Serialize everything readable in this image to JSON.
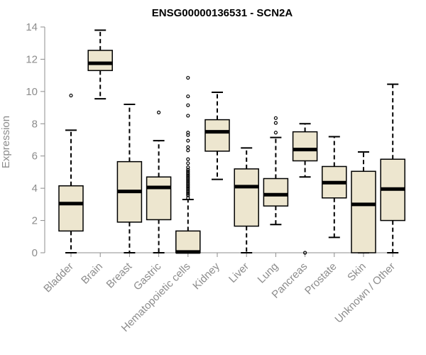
{
  "chart_data": {
    "type": "boxplot",
    "title": "ENSG00000136531 - SCN2A",
    "xlabel": "",
    "ylabel": "Expression",
    "ylim": [
      0,
      14
    ],
    "yticks": [
      0,
      2,
      4,
      6,
      8,
      10,
      12,
      14
    ],
    "grid": false,
    "box_fill": "#ede6cf",
    "box_stroke": "#000000",
    "axis_color": "#8c8c8c",
    "categories": [
      "Bladder",
      "Brain",
      "Breast",
      "Gastric",
      "Hematopoietic cells",
      "Kidney",
      "Liver",
      "Lung",
      "Pancreas",
      "Prostate",
      "Skin",
      "Unknown / Other"
    ],
    "boxes": [
      {
        "min": 0.0,
        "q1": 1.35,
        "median": 3.05,
        "q3": 4.15,
        "max": 7.6,
        "outliers": [
          9.75
        ]
      },
      {
        "min": 9.55,
        "q1": 11.3,
        "median": 11.75,
        "q3": 12.55,
        "max": 13.8,
        "outliers": []
      },
      {
        "min": 0.0,
        "q1": 1.9,
        "median": 3.8,
        "q3": 5.65,
        "max": 9.2,
        "outliers": []
      },
      {
        "min": 0.0,
        "q1": 2.05,
        "median": 4.05,
        "q3": 4.7,
        "max": 6.95,
        "outliers": [
          8.7
        ]
      },
      {
        "min": 0.0,
        "q1": 0.0,
        "median": 0.05,
        "q3": 1.35,
        "max": 3.3,
        "outliers": [
          3.4,
          3.55,
          3.65,
          3.75,
          3.85,
          3.95,
          4.05,
          4.15,
          4.25,
          4.35,
          4.45,
          4.55,
          4.65,
          4.75,
          4.85,
          4.95,
          5.05,
          5.15,
          5.3,
          5.55,
          5.8,
          6.35,
          6.55,
          6.95,
          7.3,
          7.45,
          8.5,
          9.15,
          9.7,
          10.85
        ]
      },
      {
        "min": 4.55,
        "q1": 6.3,
        "median": 7.5,
        "q3": 8.25,
        "max": 9.95,
        "outliers": []
      },
      {
        "min": 0.0,
        "q1": 1.65,
        "median": 4.1,
        "q3": 5.2,
        "max": 6.5,
        "outliers": []
      },
      {
        "min": 1.75,
        "q1": 2.9,
        "median": 3.6,
        "q3": 4.6,
        "max": 7.15,
        "outliers": [
          7.45,
          8.05,
          8.35
        ]
      },
      {
        "min": 4.7,
        "q1": 5.7,
        "median": 6.4,
        "q3": 7.5,
        "max": 8.0,
        "outliers": [
          0.0
        ]
      },
      {
        "min": 0.95,
        "q1": 3.4,
        "median": 4.35,
        "q3": 5.35,
        "max": 7.2,
        "outliers": []
      },
      {
        "min": 0.0,
        "q1": 0.0,
        "median": 3.0,
        "q3": 5.05,
        "max": 6.25,
        "outliers": []
      },
      {
        "min": 0.0,
        "q1": 2.0,
        "median": 3.95,
        "q3": 5.8,
        "max": 10.45,
        "outliers": []
      }
    ]
  }
}
